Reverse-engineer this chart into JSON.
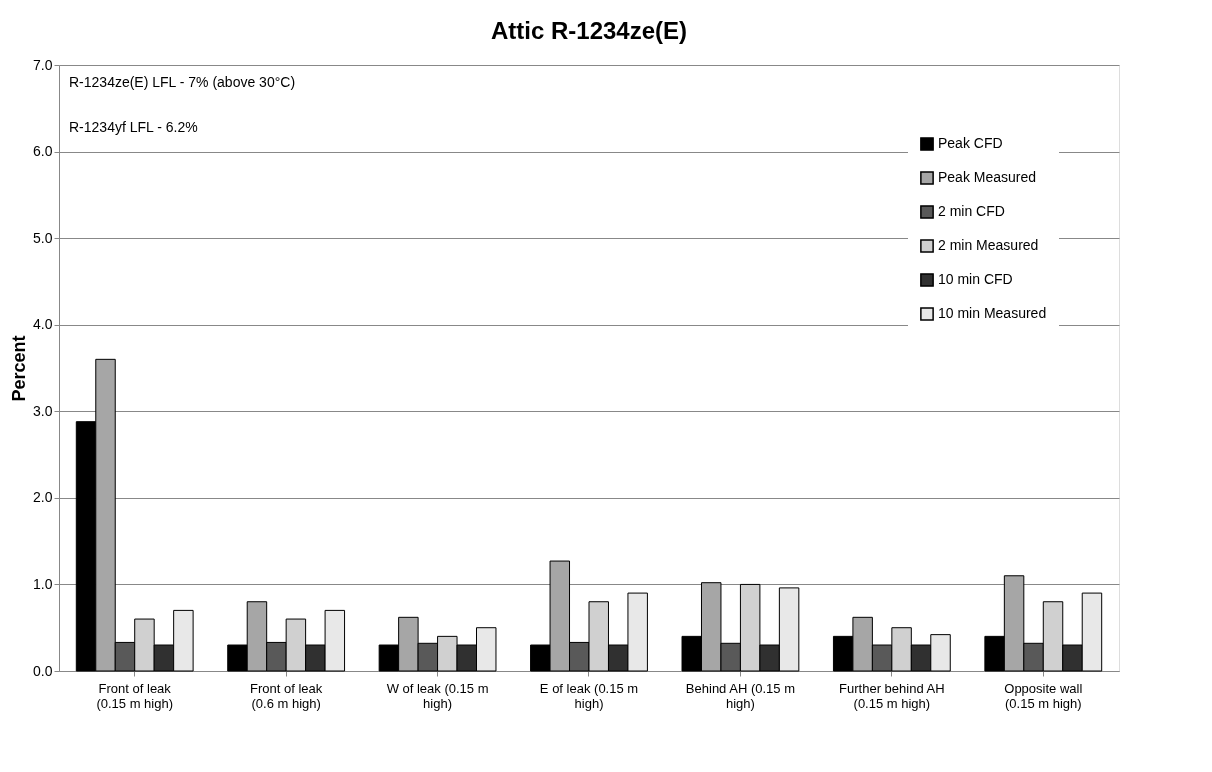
{
  "chart_data": {
    "type": "bar",
    "title": "Attic R-1234ze(E)",
    "ylabel": "Percent",
    "categories": [
      "Front of leak (0.15 m high)",
      "Front of leak (0.6 m high)",
      "W of leak (0.15 m high)",
      "E of leak (0.15 m high)",
      "Behind AH (0.15 m high)",
      "Further behind AH (0.15 m high)",
      "Opposite wall (0.15 m high)"
    ],
    "series": [
      {
        "name": "Peak CFD",
        "color": "#000000",
        "values": [
          2.88,
          0.3,
          0.3,
          0.3,
          0.4,
          0.4,
          0.4
        ]
      },
      {
        "name": "Peak Measured",
        "color": "#a6a6a6",
        "values": [
          3.6,
          0.8,
          0.62,
          1.27,
          1.02,
          0.62,
          1.1
        ]
      },
      {
        "name": "2 min CFD",
        "color": "#595959",
        "values": [
          0.33,
          0.33,
          0.32,
          0.33,
          0.32,
          0.3,
          0.32
        ]
      },
      {
        "name": "2 min Measured",
        "color": "#d0d0d0",
        "values": [
          0.6,
          0.6,
          0.4,
          0.8,
          1.0,
          0.5,
          0.8
        ]
      },
      {
        "name": "10 min CFD",
        "color": "#303030",
        "values": [
          0.3,
          0.3,
          0.3,
          0.3,
          0.3,
          0.3,
          0.3
        ]
      },
      {
        "name": "10 min Measured",
        "color": "#e8e8e8",
        "values": [
          0.7,
          0.7,
          0.5,
          0.9,
          0.96,
          0.42,
          0.9
        ]
      }
    ],
    "ylim": [
      0,
      7
    ],
    "yticks": [
      {
        "value": 0,
        "label": "0.0"
      },
      {
        "value": 1,
        "label": "1.0"
      },
      {
        "value": 2,
        "label": "2.0"
      },
      {
        "value": 3,
        "label": "3.0"
      },
      {
        "value": 4,
        "label": "4.0"
      },
      {
        "value": 5,
        "label": "5.0"
      },
      {
        "value": 6,
        "label": "6.0"
      },
      {
        "value": 7,
        "label": "7.0"
      }
    ],
    "grid": "y",
    "legend": "top right",
    "annotations": [
      "R-1234ze(E) LFL - 7% (above 30°C)",
      "R-1234yf LFL - 6.2%"
    ]
  }
}
